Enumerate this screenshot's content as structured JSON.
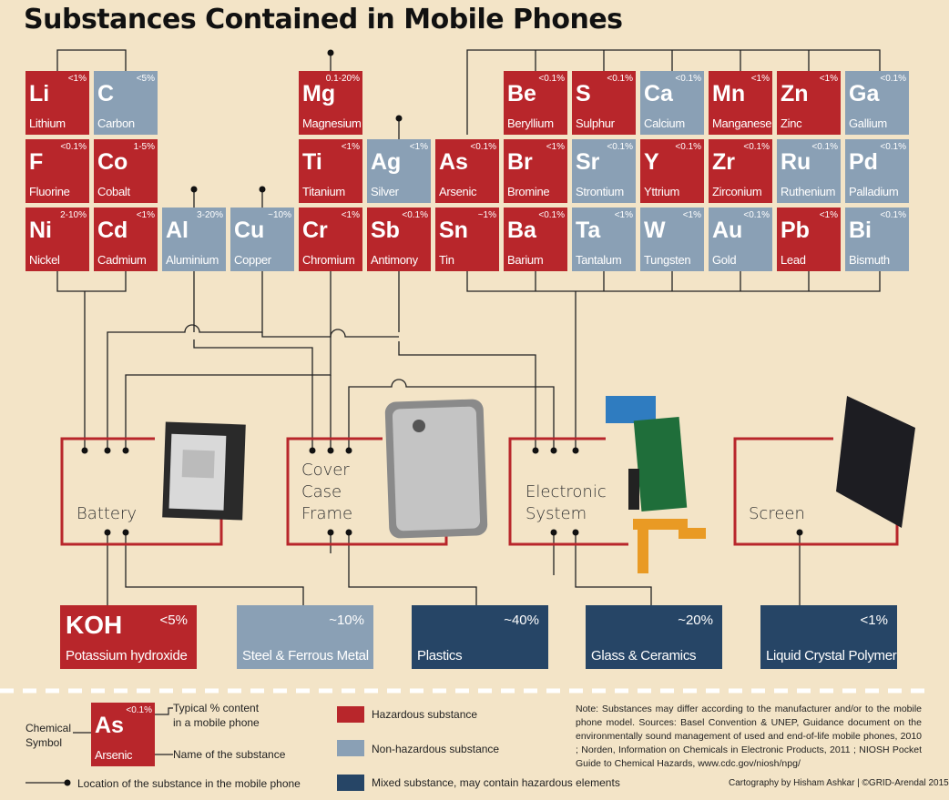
{
  "title": "Substances Contained in Mobile Phones",
  "colors": {
    "hazardous": "#b8262b",
    "non_hazardous": "#8aa0b5",
    "mixed": "#264566",
    "background": "#f3e4c7"
  },
  "elements": [
    {
      "sym": "Li",
      "name": "Lithium",
      "pct": "<1%",
      "type": "h"
    },
    {
      "sym": "C",
      "name": "Carbon",
      "pct": "<5%",
      "type": "n"
    },
    {
      "sym": "Mg",
      "name": "Magnesium",
      "pct": "0.1-20%",
      "type": "h"
    },
    {
      "sym": "Be",
      "name": "Beryllium",
      "pct": "<0.1%",
      "type": "h"
    },
    {
      "sym": "S",
      "name": "Sulphur",
      "pct": "<0.1%",
      "type": "h"
    },
    {
      "sym": "Ca",
      "name": "Calcium",
      "pct": "<0.1%",
      "type": "n"
    },
    {
      "sym": "Mn",
      "name": "Manganese",
      "pct": "<1%",
      "type": "h"
    },
    {
      "sym": "Zn",
      "name": "Zinc",
      "pct": "<1%",
      "type": "h"
    },
    {
      "sym": "Ga",
      "name": "Gallium",
      "pct": "<0.1%",
      "type": "n"
    },
    {
      "sym": "F",
      "name": "Fluorine",
      "pct": "<0.1%",
      "type": "h"
    },
    {
      "sym": "Co",
      "name": "Cobalt",
      "pct": "1-5%",
      "type": "h"
    },
    {
      "sym": "Ti",
      "name": "Titanium",
      "pct": "<1%",
      "type": "h"
    },
    {
      "sym": "Ag",
      "name": "Silver",
      "pct": "<1%",
      "type": "n"
    },
    {
      "sym": "As",
      "name": "Arsenic",
      "pct": "<0.1%",
      "type": "h"
    },
    {
      "sym": "Br",
      "name": "Bromine",
      "pct": "<1%",
      "type": "h"
    },
    {
      "sym": "Sr",
      "name": "Strontium",
      "pct": "<0.1%",
      "type": "n"
    },
    {
      "sym": "Y",
      "name": "Yttrium",
      "pct": "<0.1%",
      "type": "h"
    },
    {
      "sym": "Zr",
      "name": "Zirconium",
      "pct": "<0.1%",
      "type": "h"
    },
    {
      "sym": "Ru",
      "name": "Ruthenium",
      "pct": "<0.1%",
      "type": "n"
    },
    {
      "sym": "Pd",
      "name": "Palladium",
      "pct": "<0.1%",
      "type": "n"
    },
    {
      "sym": "Ni",
      "name": "Nickel",
      "pct": "2-10%",
      "type": "h"
    },
    {
      "sym": "Cd",
      "name": "Cadmium",
      "pct": "<1%",
      "type": "h"
    },
    {
      "sym": "Al",
      "name": "Aluminium",
      "pct": "3-20%",
      "type": "n"
    },
    {
      "sym": "Cu",
      "name": "Copper",
      "pct": "~10%",
      "type": "n"
    },
    {
      "sym": "Cr",
      "name": "Chromium",
      "pct": "<1%",
      "type": "h"
    },
    {
      "sym": "Sb",
      "name": "Antimony",
      "pct": "<0.1%",
      "type": "h"
    },
    {
      "sym": "Sn",
      "name": "Tin",
      "pct": "~1%",
      "type": "h"
    },
    {
      "sym": "Ba",
      "name": "Barium",
      "pct": "<0.1%",
      "type": "h"
    },
    {
      "sym": "Ta",
      "name": "Tantalum",
      "pct": "<1%",
      "type": "n"
    },
    {
      "sym": "W",
      "name": "Tungsten",
      "pct": "<1%",
      "type": "n"
    },
    {
      "sym": "Au",
      "name": "Gold",
      "pct": "<0.1%",
      "type": "n"
    },
    {
      "sym": "Pb",
      "name": "Lead",
      "pct": "<1%",
      "type": "h"
    },
    {
      "sym": "Bi",
      "name": "Bismuth",
      "pct": "<0.1%",
      "type": "n"
    }
  ],
  "components": {
    "battery": "Battery",
    "cover": [
      "Cover",
      "Case",
      "Frame"
    ],
    "electronic": [
      "Electronic",
      "System"
    ],
    "screen": "Screen"
  },
  "materials": [
    {
      "sym": "KOH",
      "name": "Potassium hydroxide",
      "pct": "<5%",
      "type": "h"
    },
    {
      "sym": "",
      "name": "Steel & Ferrous Metal",
      "pct": "~10%",
      "type": "n"
    },
    {
      "sym": "",
      "name": "Plastics",
      "pct": "~40%",
      "type": "m"
    },
    {
      "sym": "",
      "name": "Glass & Ceramics",
      "pct": "~20%",
      "type": "m"
    },
    {
      "sym": "",
      "name": "Liquid Crystal Polymer",
      "pct": "<1%",
      "type": "m"
    }
  ],
  "legend": {
    "chemical_symbol": "Chemical Symbol",
    "example_sym": "As",
    "example_pct": "<0.1%",
    "example_name": "Arsenic",
    "typical_content": "Typical % content in a mobile phone",
    "name_of_substance": "Name of the substance",
    "location": "Location of the substance in the mobile phone",
    "hazardous": "Hazardous substance",
    "non_hazardous": "Non-hazardous substance",
    "mixed": "Mixed substance, may contain hazardous elements"
  },
  "note": "Note: Substances may differ according to the manufacturer and/or to the mobile phone model. Sources: Basel Convention & UNEP, Guidance document on the environmentally sound management of used and end-of-life mobile phones, 2010 ; Norden, Information on Chemicals in Electronic Products, 2011 ; NIOSH Pocket Guide to Chemical Hazards, www.cdc.gov/niosh/npg/",
  "credit": "Cartography by Hisham Ashkar | ©GRID-Arendal 2015"
}
